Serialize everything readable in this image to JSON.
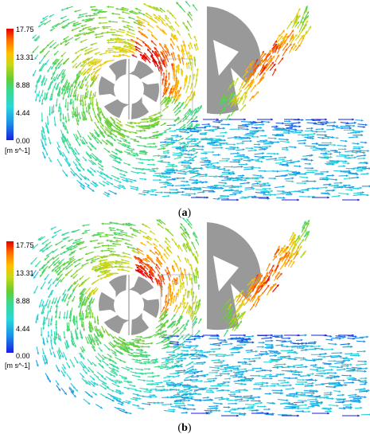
{
  "panels": [
    {
      "id": "a",
      "caption_open": "(",
      "caption_letter": "a",
      "caption_close": ")",
      "legend": {
        "max_label": "17.75",
        "tick1": "13.31",
        "tick2": "8.88",
        "tick3": "4.44",
        "min_label": "0.00",
        "unit": "[m s^-1]"
      }
    },
    {
      "id": "b",
      "caption_open": "(",
      "caption_letter": "b",
      "caption_close": ")",
      "legend": {
        "max_label": "17.75",
        "tick1": "13.31",
        "tick2": "8.88",
        "tick3": "4.44",
        "min_label": "0.00",
        "unit": "[m s^-1]"
      }
    }
  ],
  "colors": {
    "scale": [
      "#1a1ee0",
      "#1c8fe8",
      "#2ad8d8",
      "#3bd98a",
      "#66cc33",
      "#c8d81a",
      "#ffc000",
      "#ff6a00",
      "#e00000"
    ],
    "impeller": "#999999",
    "background": "#ffffff"
  },
  "legend_range": [
    0.0,
    17.75
  ]
}
